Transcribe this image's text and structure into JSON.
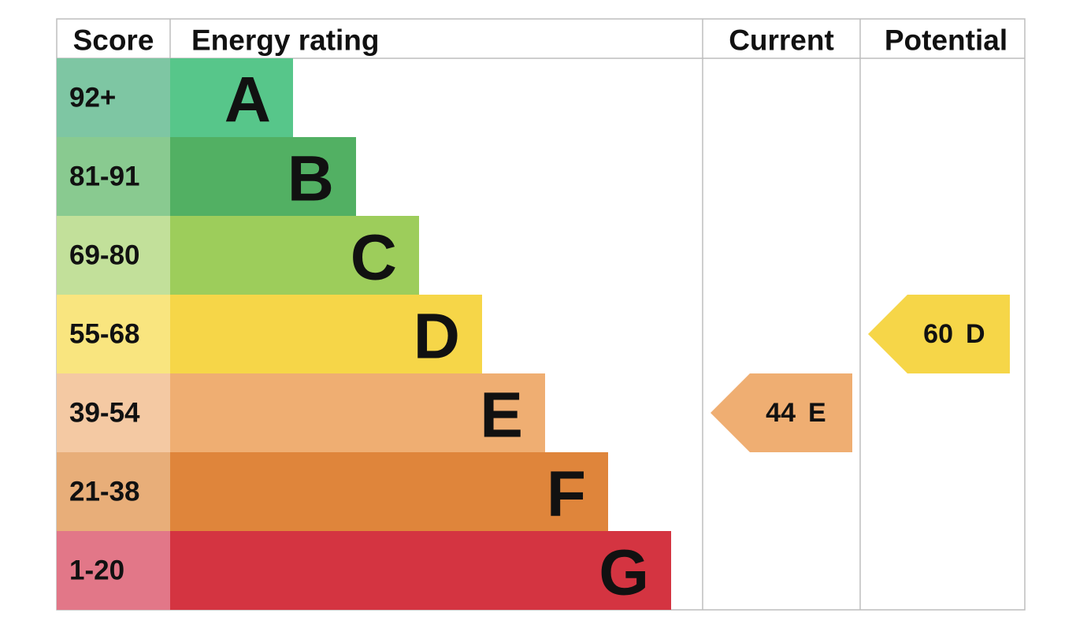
{
  "headers": {
    "score": "Score",
    "rating": "Energy rating",
    "current": "Current",
    "potential": "Potential"
  },
  "bands": [
    {
      "score": "92+",
      "letter": "A",
      "color": "#57c68a",
      "score_color": "#7ec6a3"
    },
    {
      "score": "81-91",
      "letter": "B",
      "color": "#52b063",
      "score_color": "#89ca90"
    },
    {
      "score": "69-80",
      "letter": "C",
      "color": "#9dcd5b",
      "score_color": "#c2e09a"
    },
    {
      "score": "55-68",
      "letter": "D",
      "color": "#f6d648",
      "score_color": "#f9e57f"
    },
    {
      "score": "39-54",
      "letter": "E",
      "color": "#efae72",
      "score_color": "#f4c9a3"
    },
    {
      "score": "21-38",
      "letter": "F",
      "color": "#df853b",
      "score_color": "#e8ae79"
    },
    {
      "score": "1-20",
      "letter": "G",
      "color": "#d43441",
      "score_color": "#e27788"
    }
  ],
  "current": {
    "value": 44,
    "letter": "E"
  },
  "potential": {
    "value": 60,
    "letter": "D"
  }
}
